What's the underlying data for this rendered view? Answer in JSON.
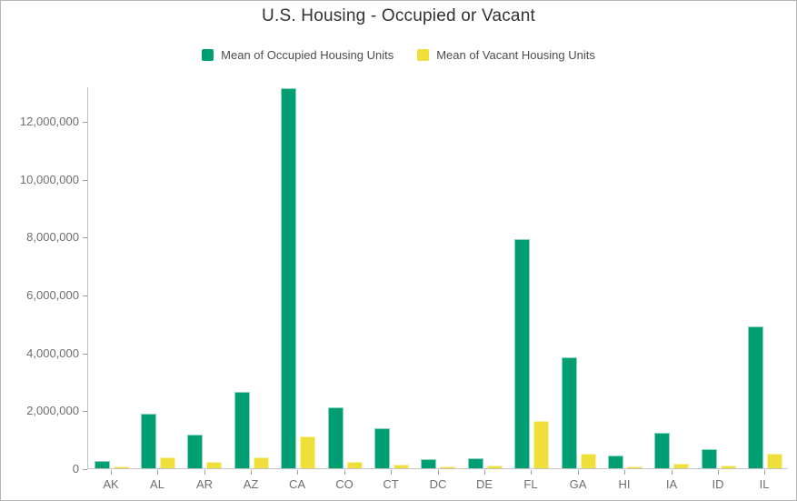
{
  "chart_data": {
    "type": "bar",
    "title": "U.S. Housing - Occupied or Vacant",
    "categories": [
      "AK",
      "AL",
      "AR",
      "AZ",
      "CA",
      "CO",
      "CT",
      "DC",
      "DE",
      "FL",
      "GA",
      "HI",
      "IA",
      "ID",
      "IL"
    ],
    "series": [
      {
        "name": "Mean of Occupied Housing Units",
        "color": "#009e73",
        "values": [
          250000,
          1870000,
          1150000,
          2630000,
          13150000,
          2100000,
          1380000,
          300000,
          360000,
          7930000,
          3820000,
          440000,
          1230000,
          650000,
          4890000
        ]
      },
      {
        "name": "Mean of Vacant Housing Units",
        "color": "#efdf3b",
        "values": [
          60000,
          370000,
          210000,
          390000,
          1100000,
          210000,
          120000,
          50000,
          90000,
          1620000,
          490000,
          70000,
          150000,
          85000,
          490000
        ]
      }
    ],
    "xlabel": "",
    "ylabel": "",
    "ylim": [
      0,
      13200000
    ],
    "yticks": [
      0,
      2000000,
      4000000,
      6000000,
      8000000,
      10000000,
      12000000
    ],
    "ytick_labels": [
      "0",
      "2,000,000",
      "4,000,000",
      "6,000,000",
      "8,000,000",
      "10,000,000",
      "12,000,000"
    ],
    "grid": false,
    "legend_position": "top",
    "axis_color": "#c4c4c4",
    "tick_color": "#9e9e9e",
    "label_color": "#6e6e6e"
  }
}
